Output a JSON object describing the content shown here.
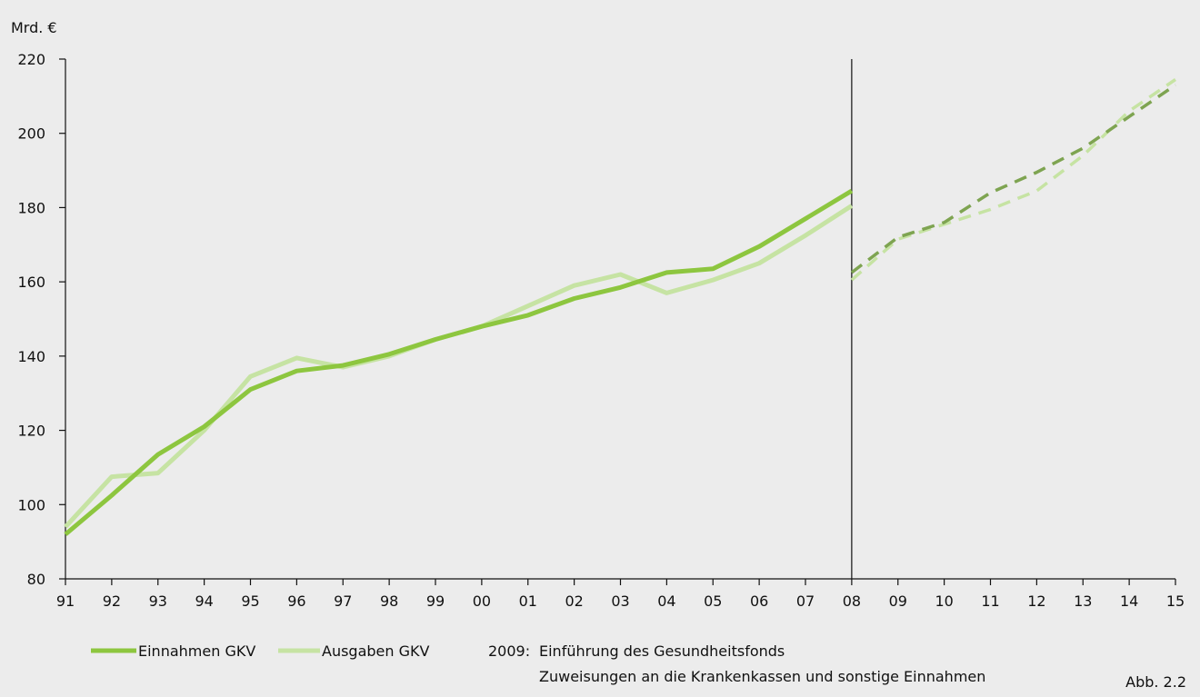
{
  "chart_data": {
    "type": "line",
    "ylabel": "Mrd. €",
    "ylim": [
      80,
      220
    ],
    "yticks": [
      80,
      100,
      120,
      140,
      160,
      180,
      200,
      220
    ],
    "categories": [
      "91",
      "92",
      "93",
      "94",
      "95",
      "96",
      "97",
      "98",
      "99",
      "00",
      "01",
      "02",
      "03",
      "04",
      "05",
      "06",
      "07",
      "08",
      "09",
      "10",
      "11",
      "12",
      "13",
      "14",
      "15"
    ],
    "series": [
      {
        "name": "Einnahmen GKV",
        "color": "#8dc63f",
        "style": "solid",
        "values": [
          92,
          102.5,
          113.5,
          121,
          131,
          136,
          137.5,
          140.5,
          144.5,
          148,
          151,
          155.5,
          158.5,
          162.5,
          163.5,
          169.5,
          177,
          184.5,
          null,
          null,
          null,
          null,
          null,
          null,
          null
        ]
      },
      {
        "name": "Ausgaben GKV",
        "color": "#c6e3a3",
        "style": "solid",
        "values": [
          94,
          107.5,
          108.5,
          120,
          134.5,
          139.5,
          137,
          140,
          144.5,
          148,
          153.5,
          159,
          162,
          157,
          160.5,
          165,
          172.5,
          180.5,
          null,
          null,
          null,
          null,
          null,
          null,
          null
        ]
      },
      {
        "name": "",
        "color": "#7ea451",
        "style": "dashed",
        "values": [
          null,
          null,
          null,
          null,
          null,
          null,
          null,
          null,
          null,
          null,
          null,
          null,
          null,
          null,
          null,
          null,
          null,
          162.5,
          172,
          176,
          184,
          189.5,
          196,
          204.5,
          213
        ]
      },
      {
        "name": "",
        "color": "#c6e3a3",
        "style": "dashed",
        "values": [
          null,
          null,
          null,
          null,
          null,
          null,
          null,
          null,
          null,
          null,
          null,
          null,
          null,
          null,
          null,
          null,
          null,
          160.5,
          171.5,
          175.5,
          179.5,
          184.5,
          194,
          206,
          214.5
        ]
      }
    ],
    "vertical_marker_at": "08",
    "grid": false
  },
  "legend": {
    "item1": "Einnahmen GKV",
    "item2": "Ausgaben GKV",
    "note_year": "2009:",
    "note_line1": "Einführung des Gesundheitsfonds",
    "note_line2": "Zuweisungen an die Krankenkassen und sonstige Einnahmen"
  },
  "figure_label": "Abb. 2.2"
}
